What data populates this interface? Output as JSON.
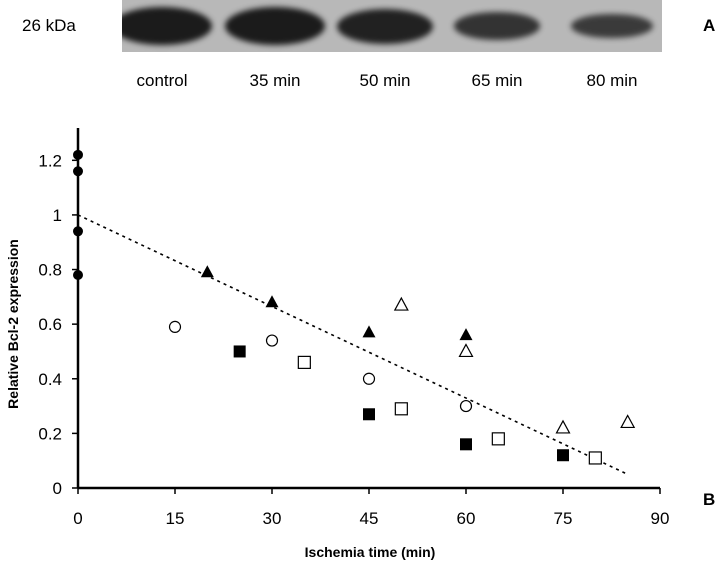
{
  "blot": {
    "mw_label": "26 kDa",
    "lanes": [
      {
        "label": "control",
        "intensity": 1.0
      },
      {
        "label": "35 min",
        "intensity": 1.0
      },
      {
        "label": "50 min",
        "intensity": 0.9
      },
      {
        "label": "65 min",
        "intensity": 0.65
      },
      {
        "label": "80 min",
        "intensity": 0.55
      }
    ]
  },
  "panel_labels": {
    "a": "A",
    "b": "B"
  },
  "chart_data": {
    "type": "scatter",
    "title": "",
    "xlabel": "Ischemia time (min)",
    "ylabel": "Relative Bcl-2 expression",
    "xlim": [
      0,
      90
    ],
    "ylim": [
      0,
      1.3
    ],
    "xticks": [
      0,
      15,
      30,
      45,
      60,
      75,
      90
    ],
    "yticks": [
      0,
      0.2,
      0.4,
      0.6,
      0.8,
      1,
      1.2
    ],
    "grid": false,
    "legend": "none",
    "series": [
      {
        "marker": "filled-circle",
        "points": [
          [
            0,
            1.22
          ],
          [
            0,
            1.16
          ],
          [
            0,
            0.94
          ],
          [
            0,
            0.78
          ]
        ]
      },
      {
        "marker": "filled-triangle",
        "points": [
          [
            20,
            0.79
          ],
          [
            30,
            0.68
          ],
          [
            45,
            0.57
          ],
          [
            60,
            0.56
          ]
        ]
      },
      {
        "marker": "open-circle",
        "points": [
          [
            15,
            0.59
          ],
          [
            30,
            0.54
          ],
          [
            45,
            0.4
          ],
          [
            60,
            0.3
          ]
        ]
      },
      {
        "marker": "filled-square",
        "points": [
          [
            25,
            0.5
          ],
          [
            45,
            0.27
          ],
          [
            60,
            0.16
          ],
          [
            75,
            0.12
          ]
        ]
      },
      {
        "marker": "open-square",
        "points": [
          [
            35,
            0.46
          ],
          [
            50,
            0.29
          ],
          [
            65,
            0.18
          ],
          [
            80,
            0.11
          ]
        ]
      },
      {
        "marker": "open-triangle",
        "points": [
          [
            50,
            0.67
          ],
          [
            60,
            0.5
          ],
          [
            75,
            0.22
          ],
          [
            85,
            0.24
          ]
        ]
      }
    ],
    "trendline": {
      "style": "dotted",
      "points": [
        [
          0,
          1.0
        ],
        [
          85,
          0.05
        ]
      ]
    }
  }
}
